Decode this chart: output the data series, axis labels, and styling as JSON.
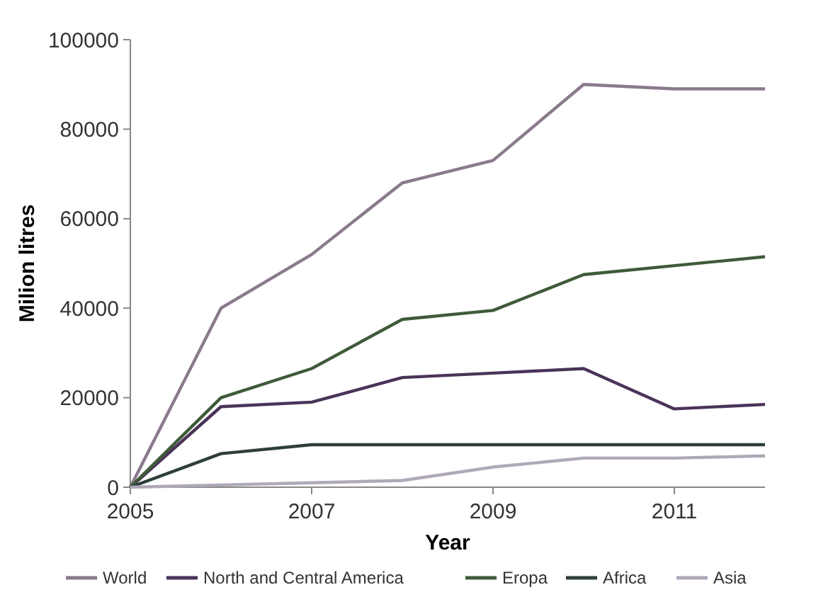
{
  "chart_data": {
    "type": "line",
    "xlabel": "Year",
    "ylabel": "Milion litres",
    "x": [
      2005,
      2006,
      2007,
      2008,
      2009,
      2010,
      2011,
      2012
    ],
    "xlim": [
      2005,
      2012
    ],
    "xticks": [
      2005,
      2007,
      2009,
      2011
    ],
    "ylim": [
      0,
      100000
    ],
    "yticks": [
      0,
      20000,
      40000,
      60000,
      80000,
      100000
    ],
    "grid": false,
    "legend": "bottom",
    "marker": "none",
    "line_style": "solid",
    "series": [
      {
        "name": "World",
        "color": "#8a7a8c",
        "values": [
          0,
          40000,
          52000,
          68000,
          73000,
          90000,
          89000,
          89000
        ]
      },
      {
        "name": "North and Central America",
        "color": "#4a3358",
        "values": [
          0,
          18000,
          19000,
          24500,
          25500,
          26500,
          17500,
          18500
        ]
      },
      {
        "name": "Eropa",
        "color": "#3f5a3a",
        "values": [
          0,
          20000,
          26500,
          37500,
          39500,
          47500,
          49500,
          51500
        ]
      },
      {
        "name": "Africa",
        "color": "#2e3f3a",
        "values": [
          0,
          7500,
          9500,
          9500,
          9500,
          9500,
          9500,
          9500
        ]
      },
      {
        "name": "Asia",
        "color": "#b0a8b8",
        "values": [
          0,
          500,
          1000,
          1500,
          4500,
          6500,
          6500,
          7000
        ]
      }
    ]
  }
}
